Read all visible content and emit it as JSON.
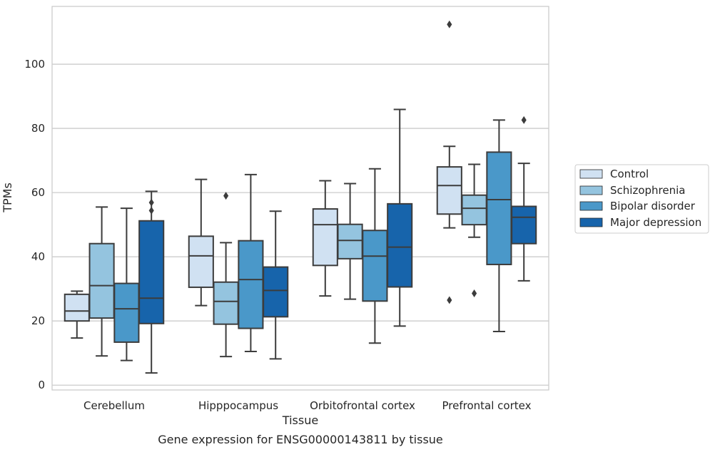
{
  "chart_data": {
    "type": "box",
    "title": "Gene expression for ENSG00000143811 by tissue",
    "xlabel": "Tissue",
    "ylabel": "TPMs",
    "ylim": [
      -1.5,
      118
    ],
    "yticks": [
      0,
      20,
      40,
      60,
      80,
      100
    ],
    "grid": true,
    "legend_position": "right",
    "categories": [
      "Cerebellum",
      "Hipppocampus",
      "Orbitofrontal cortex",
      "Prefrontal cortex"
    ],
    "series": [
      {
        "name": "Control",
        "color": "#d0e1f2",
        "boxes": [
          {
            "whislo": 14.7,
            "q1": 20.0,
            "med": 23.1,
            "q3": 28.3,
            "whishi": 29.3,
            "fliers": []
          },
          {
            "whislo": 24.8,
            "q1": 30.5,
            "med": 40.3,
            "q3": 46.4,
            "whishi": 64.1,
            "fliers": []
          },
          {
            "whislo": 27.8,
            "q1": 37.3,
            "med": 50.0,
            "q3": 54.9,
            "whishi": 63.7,
            "fliers": []
          },
          {
            "whislo": 49.0,
            "q1": 53.3,
            "med": 62.2,
            "q3": 68.0,
            "whishi": 74.4,
            "fliers": [
              26.5,
              112.4
            ]
          }
        ]
      },
      {
        "name": "Schizophrenia",
        "color": "#94c4df",
        "boxes": [
          {
            "whislo": 9.1,
            "q1": 20.9,
            "med": 31.0,
            "q3": 44.1,
            "whishi": 55.5,
            "fliers": []
          },
          {
            "whislo": 8.9,
            "q1": 19.0,
            "med": 26.1,
            "q3": 32.1,
            "whishi": 44.4,
            "fliers": [
              59.0
            ]
          },
          {
            "whislo": 26.8,
            "q1": 39.4,
            "med": 45.1,
            "q3": 50.1,
            "whishi": 62.8,
            "fliers": []
          },
          {
            "whislo": 46.1,
            "q1": 50.0,
            "med": 55.1,
            "q3": 59.2,
            "whishi": 68.8,
            "fliers": [
              28.6
            ]
          }
        ]
      },
      {
        "name": "Bipolar disorder",
        "color": "#4a98c9",
        "boxes": [
          {
            "whislo": 7.7,
            "q1": 13.4,
            "med": 23.8,
            "q3": 31.7,
            "whishi": 55.1,
            "fliers": []
          },
          {
            "whislo": 10.5,
            "q1": 17.7,
            "med": 32.9,
            "q3": 45.0,
            "whishi": 65.6,
            "fliers": []
          },
          {
            "whislo": 13.1,
            "q1": 26.2,
            "med": 40.2,
            "q3": 48.2,
            "whishi": 67.4,
            "fliers": []
          },
          {
            "whislo": 16.7,
            "q1": 37.6,
            "med": 57.8,
            "q3": 72.6,
            "whishi": 82.6,
            "fliers": []
          }
        ]
      },
      {
        "name": "Major depression",
        "color": "#1764ab",
        "boxes": [
          {
            "whislo": 3.8,
            "q1": 19.2,
            "med": 27.1,
            "q3": 51.2,
            "whishi": 60.4,
            "fliers": [
              54.4,
              56.9
            ]
          },
          {
            "whislo": 8.2,
            "q1": 21.3,
            "med": 29.5,
            "q3": 36.8,
            "whishi": 54.2,
            "fliers": []
          },
          {
            "whislo": 18.4,
            "q1": 30.6,
            "med": 43.0,
            "q3": 56.5,
            "whishi": 85.9,
            "fliers": []
          },
          {
            "whislo": 32.5,
            "q1": 44.1,
            "med": 52.3,
            "q3": 55.7,
            "whishi": 69.1,
            "fliers": [
              82.6
            ]
          }
        ]
      }
    ]
  }
}
